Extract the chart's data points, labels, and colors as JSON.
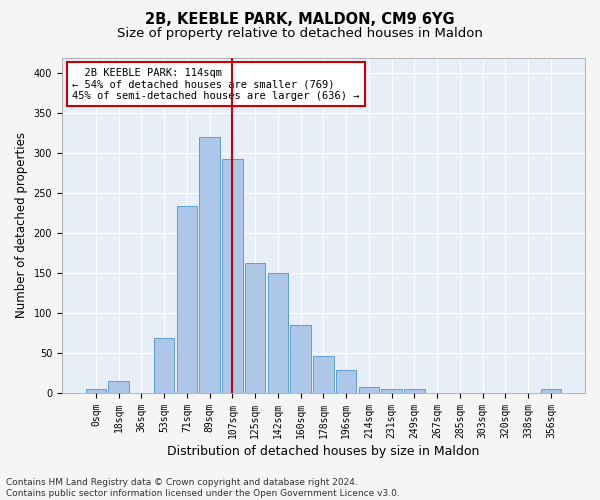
{
  "title_line1": "2B, KEEBLE PARK, MALDON, CM9 6YG",
  "title_line2": "Size of property relative to detached houses in Maldon",
  "xlabel": "Distribution of detached houses by size in Maldon",
  "ylabel": "Number of detached properties",
  "bar_labels": [
    "0sqm",
    "18sqm",
    "36sqm",
    "53sqm",
    "71sqm",
    "89sqm",
    "107sqm",
    "125sqm",
    "142sqm",
    "160sqm",
    "178sqm",
    "196sqm",
    "214sqm",
    "231sqm",
    "249sqm",
    "267sqm",
    "285sqm",
    "303sqm",
    "320sqm",
    "338sqm",
    "356sqm"
  ],
  "bar_values": [
    4,
    15,
    0,
    68,
    234,
    320,
    293,
    163,
    150,
    85,
    46,
    28,
    7,
    5,
    4,
    0,
    0,
    0,
    0,
    0,
    4
  ],
  "bar_color": "#aec6e8",
  "bar_edge_color": "#5a9fd4",
  "vline_x": 6.0,
  "vline_color": "#cc0000",
  "annotation_text": "  2B KEEBLE PARK: 114sqm\n← 54% of detached houses are smaller (769)\n45% of semi-detached houses are larger (636) →",
  "annotation_box_color": "#ffffff",
  "annotation_box_edge": "#cc0000",
  "ylim": [
    0,
    420
  ],
  "yticks": [
    0,
    50,
    100,
    150,
    200,
    250,
    300,
    350,
    400
  ],
  "bg_color": "#e8eef7",
  "grid_color": "#ffffff",
  "fig_bg_color": "#f5f5f5",
  "footer_line1": "Contains HM Land Registry data © Crown copyright and database right 2024.",
  "footer_line2": "Contains public sector information licensed under the Open Government Licence v3.0.",
  "title_fontsize": 10.5,
  "subtitle_fontsize": 9.5,
  "xlabel_fontsize": 9,
  "ylabel_fontsize": 8.5,
  "tick_fontsize": 7,
  "annotation_fontsize": 7.5,
  "footer_fontsize": 6.5
}
